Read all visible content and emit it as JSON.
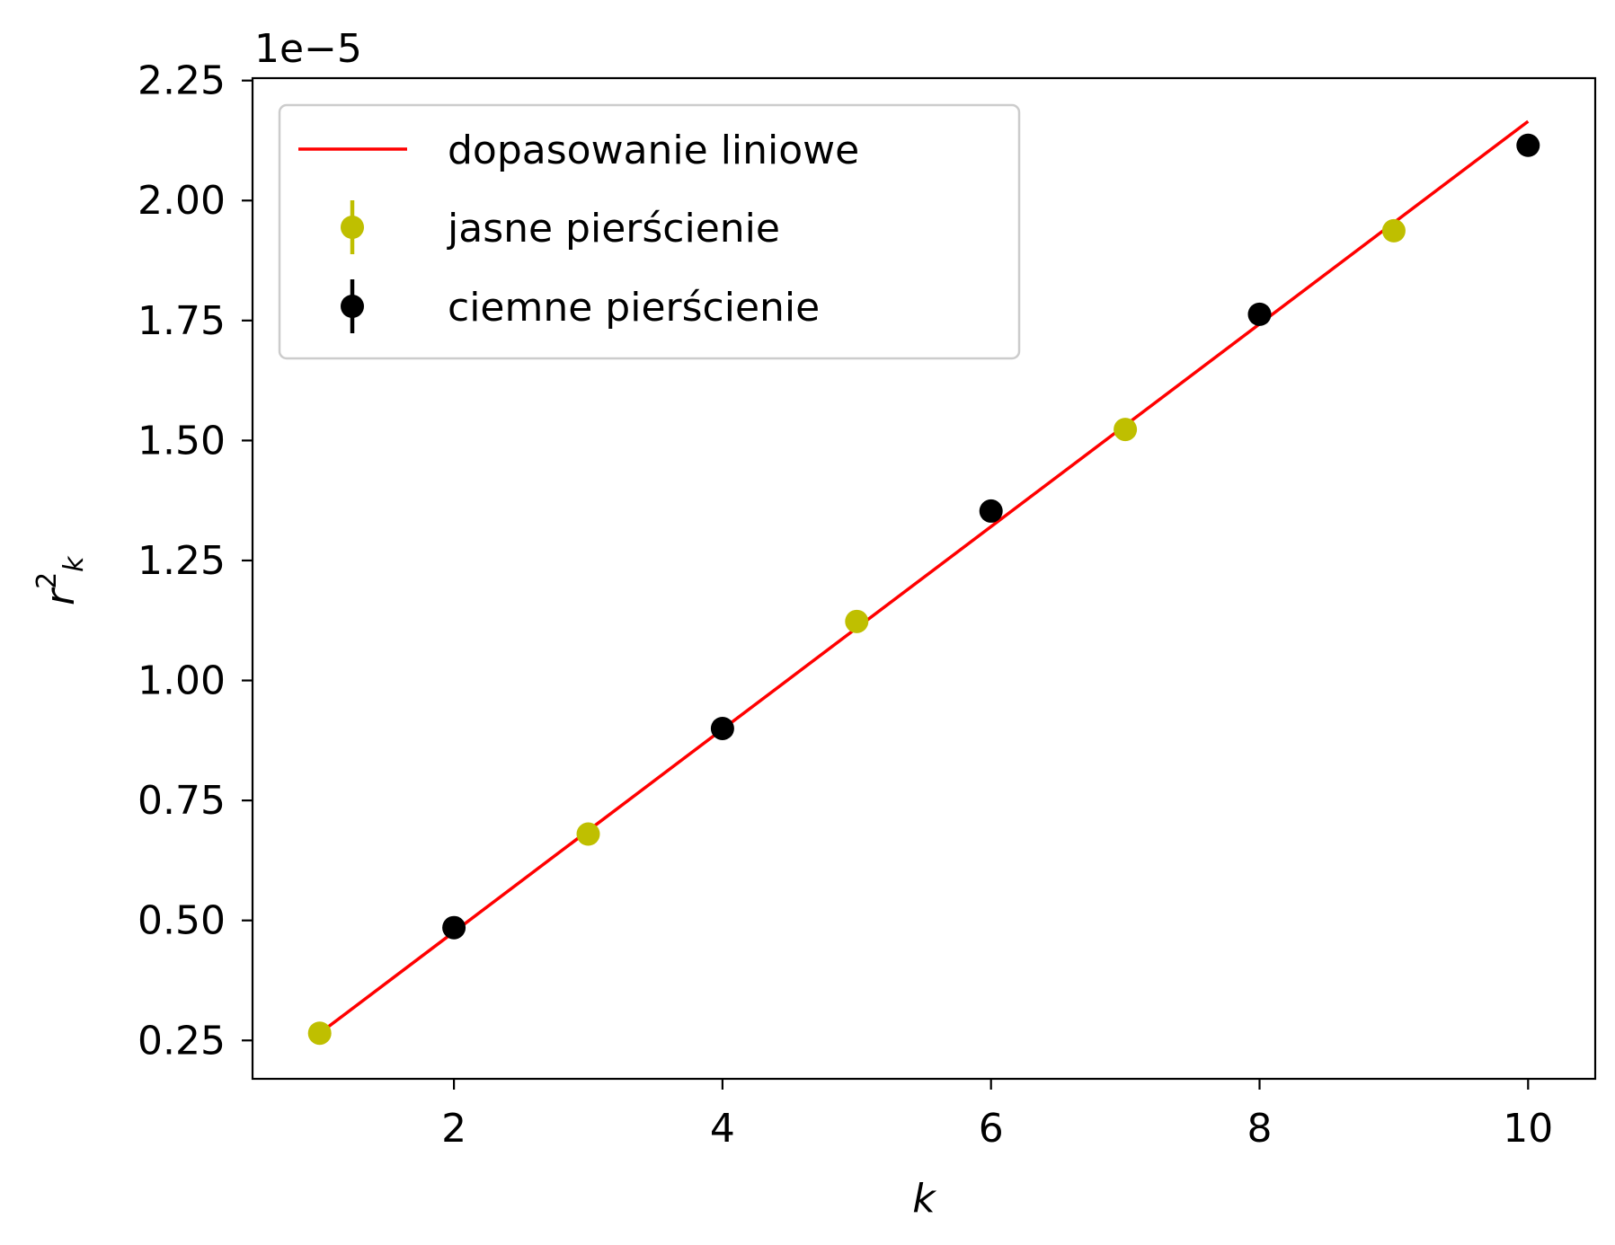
{
  "chart_data": {
    "type": "scatter",
    "title": "",
    "xlabel": "k",
    "ylabel_base": "r",
    "ylabel_sup": "2",
    "ylabel_sub": "k",
    "y_offset_label": "1e−5",
    "xlim": [
      0.5,
      10.5
    ],
    "ylim": [
      0.17,
      2.255
    ],
    "xticks": [
      2,
      4,
      6,
      8,
      10
    ],
    "xtick_labels": [
      "2",
      "4",
      "6",
      "8",
      "10"
    ],
    "yticks": [
      0.25,
      0.5,
      0.75,
      1.0,
      1.25,
      1.5,
      1.75,
      2.0,
      2.25
    ],
    "ytick_labels": [
      "0.25",
      "0.50",
      "0.75",
      "1.00",
      "1.25",
      "1.50",
      "1.75",
      "2.00",
      "2.25"
    ],
    "grid": false,
    "legend_position": "top-left",
    "series": [
      {
        "name": "dopasowanie liniowe",
        "kind": "line",
        "color": "#ff0000",
        "x": [
          1,
          10
        ],
        "y": [
          0.265,
          2.165
        ]
      },
      {
        "name": "jasne pierścienie",
        "kind": "errorbar",
        "color": "#bfbf00",
        "x": [
          1,
          3,
          5,
          7,
          9
        ],
        "y": [
          0.265,
          0.68,
          1.123,
          1.523,
          1.937
        ]
      },
      {
        "name": "ciemne pierścienie",
        "kind": "errorbar",
        "color": "#000000",
        "x": [
          2,
          4,
          6,
          8,
          10
        ],
        "y": [
          0.485,
          0.9,
          1.353,
          1.763,
          2.115
        ]
      }
    ]
  }
}
